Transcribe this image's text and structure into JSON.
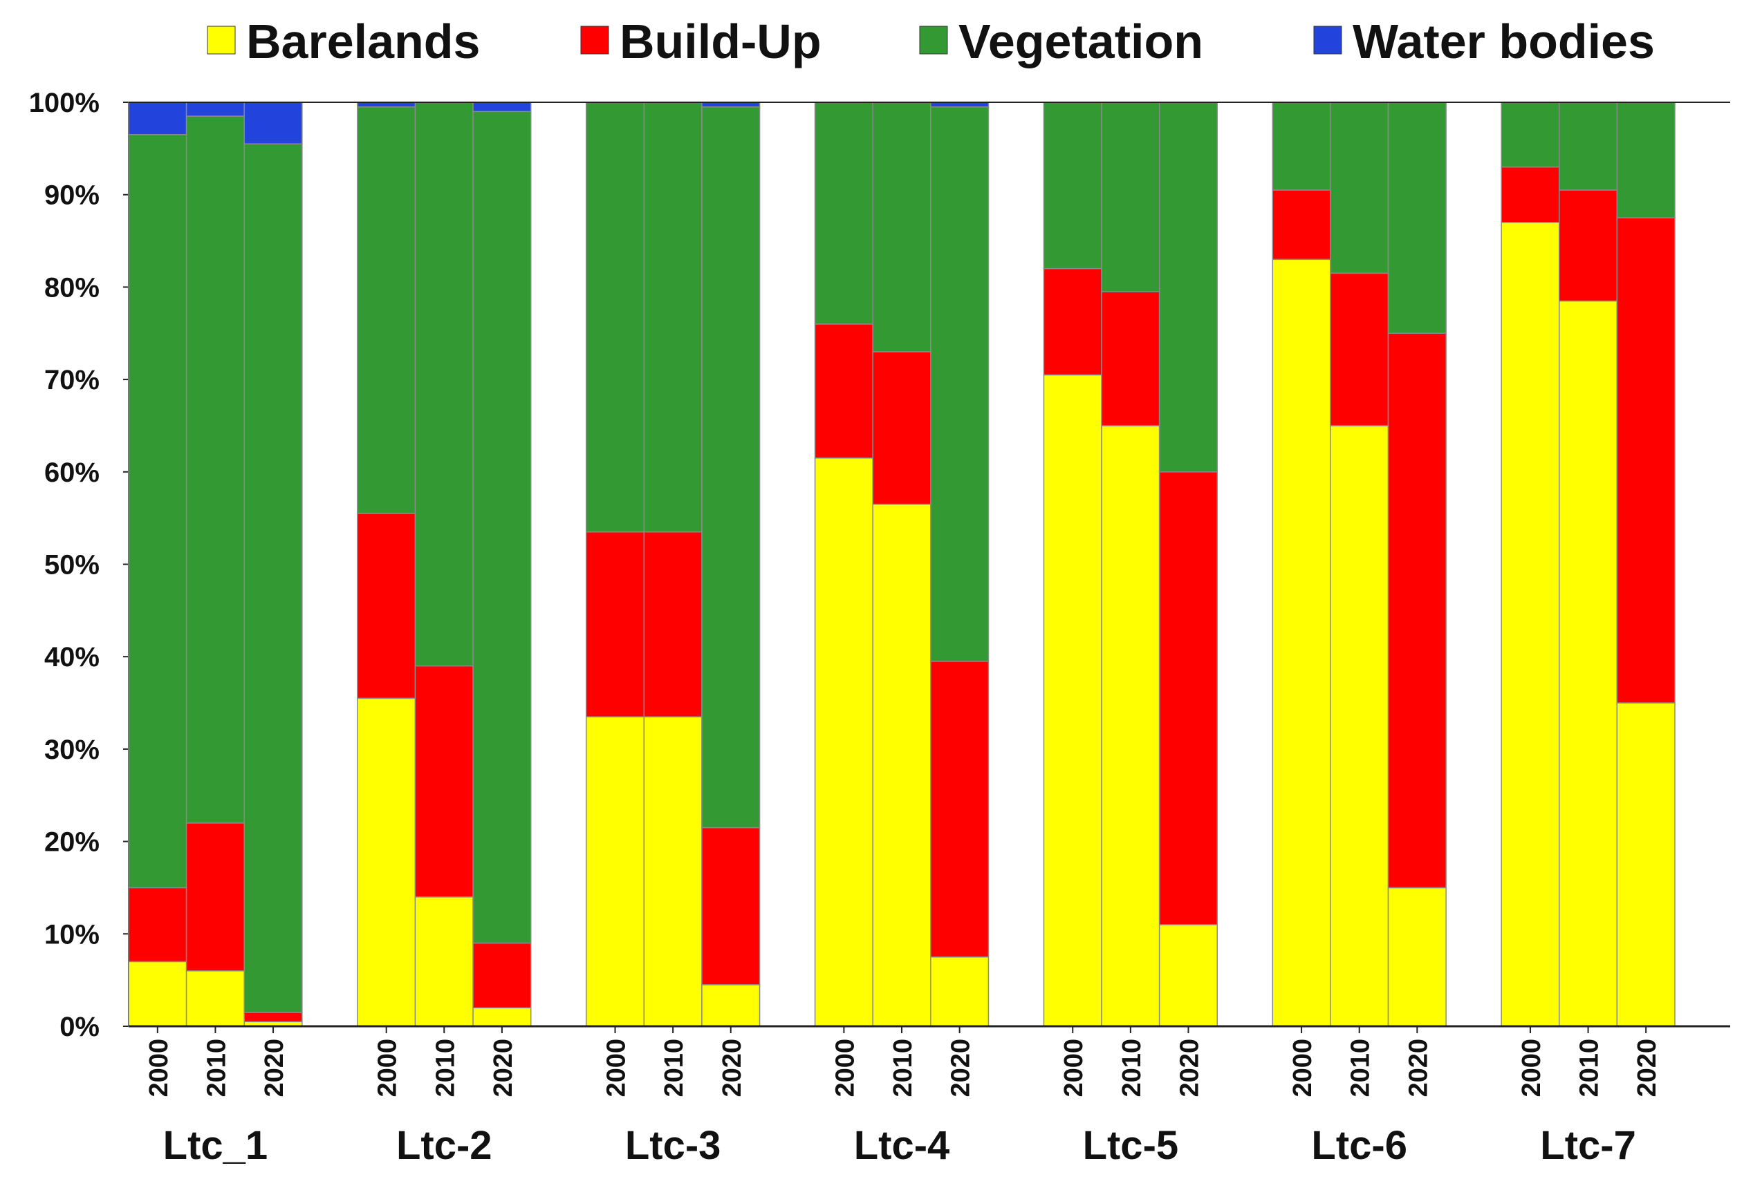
{
  "chart_data": {
    "type": "stacked-bar-100",
    "title": "",
    "xlabel": "",
    "ylabel": "",
    "ylim": [
      0,
      100
    ],
    "yticks": [
      "0%",
      "10%",
      "20%",
      "30%",
      "40%",
      "50%",
      "60%",
      "70%",
      "80%",
      "90%",
      "100%"
    ],
    "legend_position": "top",
    "groups": [
      "Ltc_1",
      "Ltc-2",
      "Ltc-3",
      "Ltc-4",
      "Ltc-5",
      "Ltc-6",
      "Ltc-7"
    ],
    "years": [
      "2000",
      "2010",
      "2020"
    ],
    "series": [
      {
        "name": "Barelands",
        "color": "#ffff00",
        "values": [
          [
            7,
            6,
            0.5
          ],
          [
            35.5,
            14,
            2
          ],
          [
            33.5,
            33.5,
            4.5
          ],
          [
            61.5,
            56.5,
            7.5
          ],
          [
            70.5,
            65,
            11
          ],
          [
            83,
            65,
            15
          ],
          [
            87,
            78.5,
            35
          ]
        ]
      },
      {
        "name": "Build-Up",
        "color": "#ff0000",
        "values": [
          [
            8,
            16,
            1
          ],
          [
            20,
            25,
            7
          ],
          [
            20,
            20,
            17
          ],
          [
            14.5,
            16.5,
            32
          ],
          [
            11.5,
            14.5,
            49
          ],
          [
            7.5,
            16.5,
            60
          ],
          [
            6,
            12,
            52.5
          ]
        ]
      },
      {
        "name": "Vegetation",
        "color": "#339933",
        "values": [
          [
            81.5,
            76.5,
            94
          ],
          [
            44,
            61,
            90
          ],
          [
            46.5,
            46.5,
            78
          ],
          [
            24,
            27,
            60
          ],
          [
            18,
            20.5,
            40
          ],
          [
            9.5,
            18.5,
            25
          ],
          [
            7,
            9.5,
            12.5
          ]
        ]
      },
      {
        "name": "Water bodies",
        "color": "#2244dd",
        "values": [
          [
            3.5,
            1.5,
            4.5
          ],
          [
            0.5,
            0,
            1
          ],
          [
            0,
            0,
            0.5
          ],
          [
            0,
            0,
            0.5
          ],
          [
            0,
            0,
            0
          ],
          [
            0,
            0,
            0
          ],
          [
            0,
            0,
            0
          ]
        ]
      }
    ]
  }
}
